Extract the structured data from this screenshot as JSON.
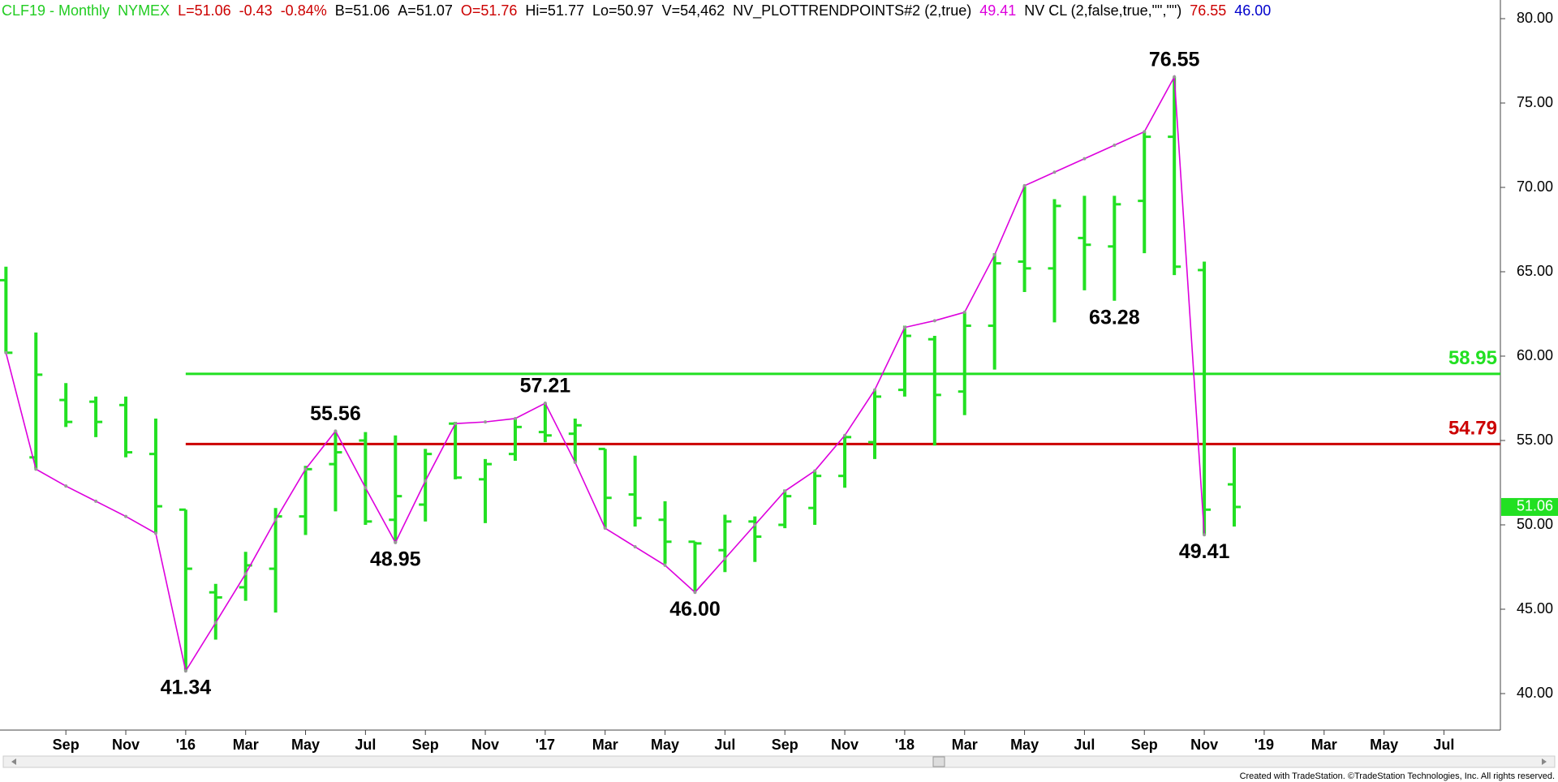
{
  "header": [
    {
      "text": "CLF19 - Monthly",
      "color": "#22cc22"
    },
    {
      "text": "NYMEX",
      "color": "#22cc22"
    },
    {
      "text": "L=51.06",
      "color": "#cc0000"
    },
    {
      "text": "-0.43",
      "color": "#cc0000"
    },
    {
      "text": "-0.84%",
      "color": "#cc0000"
    },
    {
      "text": "B=51.06",
      "color": "#000000"
    },
    {
      "text": "A=51.07",
      "color": "#000000"
    },
    {
      "text": "O=51.76",
      "color": "#cc0000"
    },
    {
      "text": "Hi=51.77",
      "color": "#000000"
    },
    {
      "text": "Lo=50.97",
      "color": "#000000"
    },
    {
      "text": "V=54,462",
      "color": "#000000"
    },
    {
      "text": "NV_PLOTTRENDPOINTS#2 (2,true)",
      "color": "#000000"
    },
    {
      "text": "49.41",
      "color": "#dd00dd"
    },
    {
      "text": "NV CL (2,false,true,\"\",\"\")",
      "color": "#000000"
    },
    {
      "text": "76.55",
      "color": "#cc0000"
    },
    {
      "text": "46.00",
      "color": "#0000cc"
    }
  ],
  "chart_data": {
    "type": "ohlc",
    "categories": [
      null,
      null,
      "Sep",
      null,
      "Nov",
      null,
      "'16",
      null,
      "Mar",
      null,
      "May",
      null,
      "Jul",
      null,
      "Sep",
      null,
      "Nov",
      null,
      "'17",
      null,
      "Mar",
      null,
      "May",
      null,
      "Jul",
      null,
      "Sep",
      null,
      "Nov",
      null,
      "'18",
      null,
      "Mar",
      null,
      "May",
      null,
      "Jul",
      null,
      "Sep",
      null,
      "Nov",
      null,
      "'19",
      null,
      "Mar",
      null,
      "May",
      null,
      "Jul",
      null
    ],
    "open": [
      64.5,
      54.0,
      57.4,
      57.3,
      57.1,
      54.2,
      50.9,
      46.0,
      46.3,
      47.4,
      50.5,
      53.6,
      55.0,
      50.3,
      51.2,
      56.0,
      52.7,
      54.2,
      55.5,
      55.4,
      54.5,
      51.8,
      50.3,
      49.0,
      48.5,
      50.2,
      50.0,
      51.0,
      52.9,
      54.9,
      58.0,
      61.0,
      57.9,
      61.8,
      65.6,
      65.2,
      67.0,
      66.5,
      69.2,
      73.0,
      65.1,
      52.4,
      null,
      null,
      null,
      null,
      null,
      null,
      null,
      null
    ],
    "high": [
      65.3,
      61.4,
      58.4,
      57.6,
      57.6,
      56.3,
      50.9,
      46.5,
      48.4,
      51.0,
      53.5,
      55.56,
      55.5,
      55.3,
      54.5,
      56.1,
      53.9,
      56.3,
      57.21,
      56.3,
      54.5,
      54.1,
      51.4,
      49.0,
      50.6,
      50.5,
      52.1,
      53.2,
      55.3,
      58.0,
      61.8,
      61.2,
      62.6,
      66.1,
      70.1,
      69.3,
      69.5,
      69.5,
      73.3,
      76.55,
      65.6,
      54.6,
      null,
      null,
      null,
      null,
      null,
      null,
      null,
      null
    ],
    "low": [
      60.2,
      53.3,
      55.8,
      55.2,
      54.0,
      49.5,
      41.34,
      43.2,
      45.5,
      44.8,
      49.4,
      50.8,
      50.0,
      48.95,
      50.2,
      52.7,
      50.1,
      53.8,
      54.9,
      53.7,
      49.8,
      49.9,
      47.7,
      46.0,
      47.2,
      47.8,
      49.8,
      50.0,
      52.2,
      53.9,
      57.6,
      54.7,
      56.5,
      59.2,
      63.8,
      62.0,
      63.9,
      63.28,
      66.1,
      64.8,
      49.41,
      49.9,
      null,
      null,
      null,
      null,
      null,
      null,
      null,
      null
    ],
    "close": [
      60.2,
      58.9,
      56.1,
      56.1,
      54.3,
      51.1,
      47.4,
      45.7,
      47.6,
      50.5,
      53.3,
      54.3,
      50.2,
      51.7,
      54.2,
      52.8,
      53.6,
      55.8,
      55.3,
      55.9,
      51.6,
      50.4,
      49.0,
      48.9,
      50.2,
      49.3,
      51.7,
      52.9,
      55.2,
      57.6,
      61.2,
      57.7,
      61.8,
      65.5,
      65.2,
      68.9,
      66.6,
      69.0,
      73.0,
      65.3,
      50.9,
      51.06,
      null,
      null,
      null,
      null,
      null,
      null,
      null,
      null
    ],
    "color": "#22e022",
    "trend": {
      "color": "#dd00dd",
      "values": [
        60.2,
        53.3,
        52.3,
        51.4,
        50.5,
        49.5,
        41.34,
        44.2,
        47.1,
        50.3,
        53.3,
        55.56,
        52.2,
        48.95,
        52.6,
        56.0,
        56.1,
        56.3,
        57.21,
        53.7,
        49.8,
        48.7,
        47.6,
        46.0,
        48.0,
        50.0,
        52.0,
        53.2,
        55.3,
        58.0,
        61.7,
        62.1,
        62.6,
        66.0,
        70.1,
        70.9,
        71.7,
        72.5,
        73.3,
        76.55,
        49.41,
        null,
        null,
        null,
        null,
        null,
        null,
        null,
        null,
        null
      ]
    },
    "annotations": [
      76.55,
      63.28,
      57.21,
      55.56,
      48.95,
      {
        "value": 46,
        "label": "46.00"
      },
      41.34,
      49.41
    ],
    "hlines": [
      {
        "value": 58.95,
        "color": "#22e022"
      },
      {
        "value": 54.79,
        "color": "#cc0000"
      }
    ],
    "ylim": [
      37.8,
      81.3
    ],
    "yticks": [
      {
        "value": 40,
        "label": "40.00"
      },
      {
        "value": 45,
        "label": "45.00"
      },
      {
        "value": 50,
        "label": "50.00"
      },
      {
        "value": 55,
        "label": "55.00"
      },
      {
        "value": 60,
        "label": "60.00"
      },
      {
        "value": 65,
        "label": "65.00"
      },
      {
        "value": 70,
        "label": "70.00"
      },
      {
        "value": 75,
        "label": "75.00"
      },
      {
        "value": 80,
        "label": "80.00"
      }
    ]
  },
  "footer": "Created with TradeStation. ©TradeStation Technologies, Inc. All rights reserved."
}
